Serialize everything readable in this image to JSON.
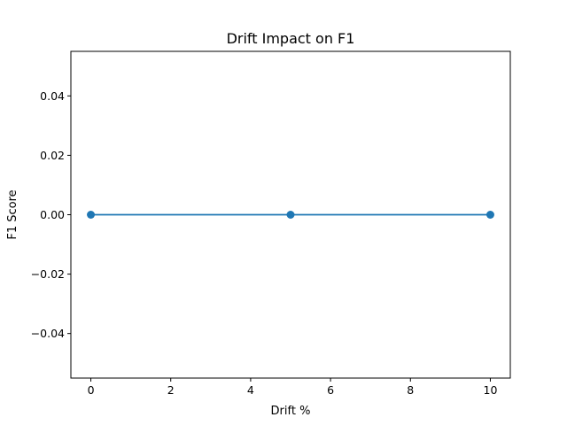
{
  "chart_data": {
    "type": "line",
    "title": "Drift Impact on F1",
    "xlabel": "Drift %",
    "ylabel": "F1 Score",
    "xlim": [
      -0.5,
      10.5
    ],
    "ylim": [
      -0.055,
      0.055
    ],
    "x_ticks": [
      0,
      2,
      4,
      6,
      8,
      10
    ],
    "y_ticks": [
      -0.04,
      -0.02,
      0.0,
      0.02,
      0.04
    ],
    "x_tick_labels": [
      "0",
      "2",
      "4",
      "6",
      "8",
      "10"
    ],
    "y_tick_labels": [
      "−0.04",
      "−0.02",
      "0.00",
      "0.02",
      "0.04"
    ],
    "grid": false,
    "series": [
      {
        "color": "#1f77b4",
        "marker": "circle",
        "x": [
          0,
          5,
          10
        ],
        "y": [
          0.0,
          0.0,
          0.0
        ]
      }
    ]
  }
}
